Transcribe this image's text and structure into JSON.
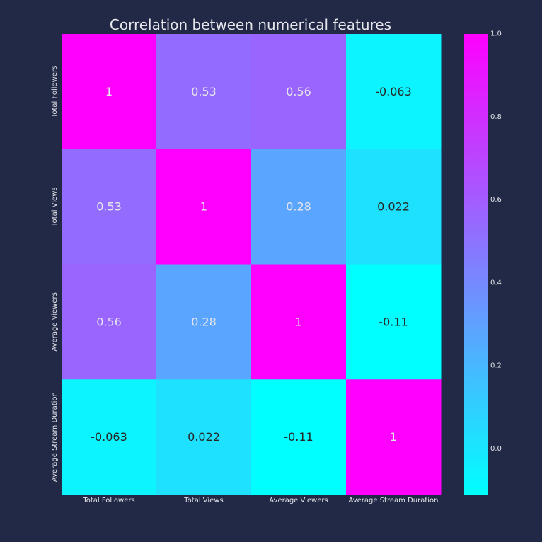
{
  "chart_data": {
    "type": "heatmap",
    "title": "Correlation between numerical features",
    "xlabel": "",
    "ylabel": "",
    "x_categories": [
      "Total Followers",
      "Total Views",
      "Average Viewers",
      "Average Stream Duration"
    ],
    "y_categories": [
      "Total Followers",
      "Total Views",
      "Average Viewers",
      "Average Stream Duration"
    ],
    "values": [
      [
        1,
        0.53,
        0.56,
        -0.063
      ],
      [
        0.53,
        1,
        0.28,
        0.022
      ],
      [
        0.56,
        0.28,
        1,
        -0.11
      ],
      [
        -0.063,
        0.022,
        -0.11,
        1
      ]
    ],
    "annotations": [
      [
        "1",
        "0.53",
        "0.56",
        "-0.063"
      ],
      [
        "0.53",
        "1",
        "0.28",
        "0.022"
      ],
      [
        "0.56",
        "0.28",
        "1",
        "-0.11"
      ],
      [
        "-0.063",
        "0.022",
        "-0.11",
        "1"
      ]
    ],
    "colormap": "cool",
    "colormap_start": "#00ffff",
    "colormap_end": "#ff00ff",
    "vmin": -0.11,
    "vmax": 1.0,
    "colorbar_ticks": [
      "0.0",
      "0.2",
      "0.4",
      "0.6",
      "0.8",
      "1.0"
    ],
    "colorbar_tick_values": [
      0.0,
      0.2,
      0.4,
      0.6,
      0.8,
      1.0
    ],
    "grid": false,
    "colors": {
      "background": "#212946",
      "text": "#e6e6ea",
      "annotation_on_light": "#e6e6ea"
    }
  }
}
